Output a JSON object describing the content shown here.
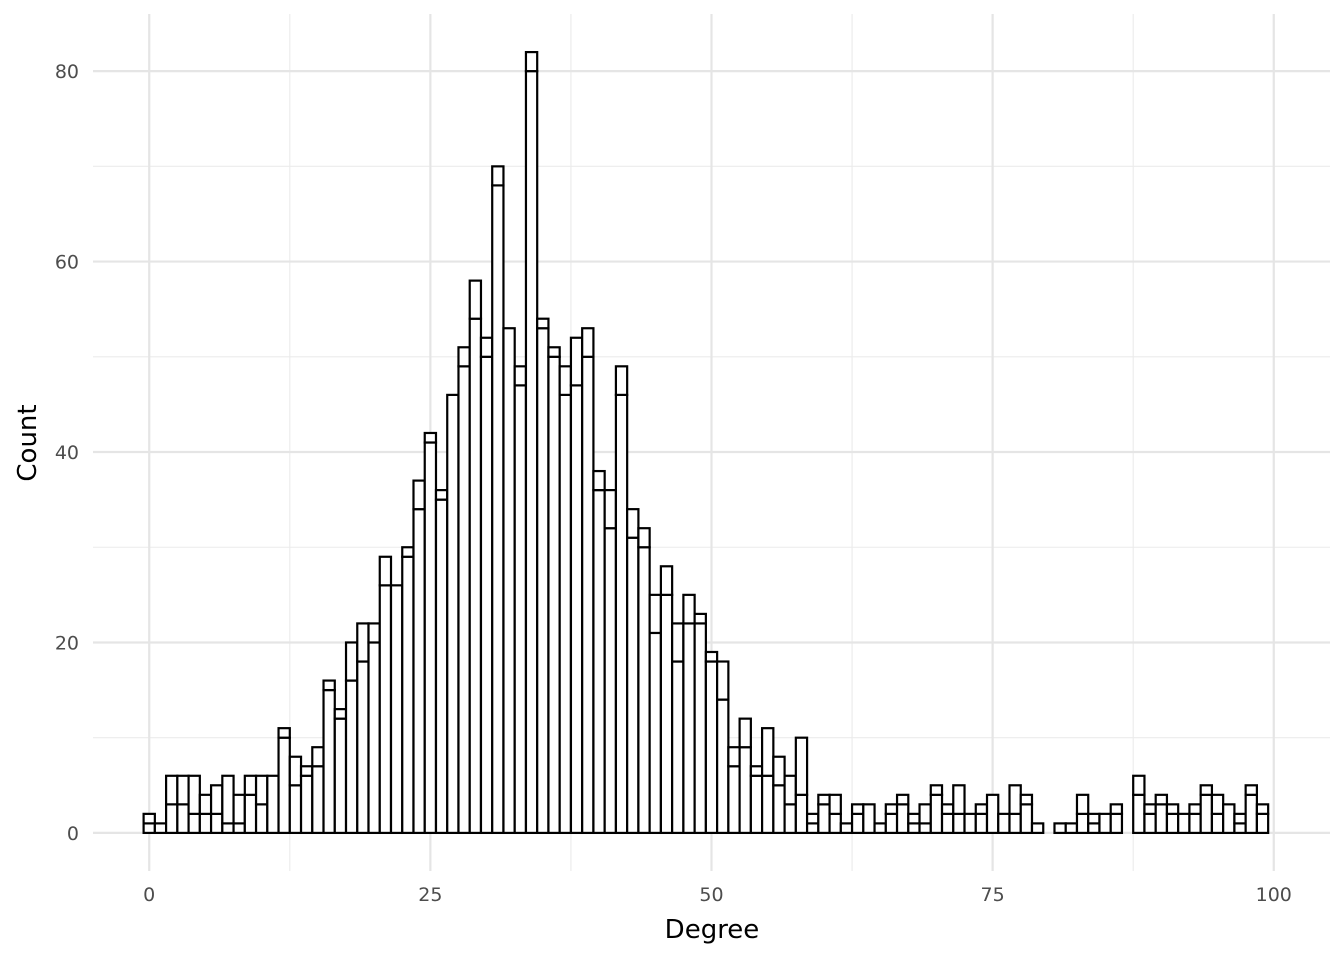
{
  "chart_data": {
    "type": "bar",
    "style": "stacked histogram, white bars with black outlines, minimal theme",
    "xlabel": "Degree",
    "ylabel": "Count",
    "x_ticks": [
      0,
      25,
      50,
      75,
      100
    ],
    "y_ticks": [
      0,
      20,
      40,
      60,
      80
    ],
    "xlim": [
      -5,
      105
    ],
    "ylim": [
      -4,
      86
    ],
    "grid": true,
    "legend": "none",
    "bin_width": 1,
    "x": [
      0,
      1,
      2,
      3,
      4,
      5,
      6,
      7,
      8,
      9,
      10,
      11,
      12,
      13,
      14,
      15,
      16,
      17,
      18,
      19,
      20,
      21,
      22,
      23,
      24,
      25,
      26,
      27,
      28,
      29,
      30,
      31,
      32,
      33,
      34,
      35,
      36,
      37,
      38,
      39,
      40,
      41,
      42,
      43,
      44,
      45,
      46,
      47,
      48,
      49,
      50,
      51,
      52,
      53,
      54,
      55,
      56,
      57,
      58,
      59,
      60,
      61,
      62,
      63,
      64,
      65,
      66,
      67,
      68,
      69,
      70,
      71,
      72,
      73,
      74,
      75,
      76,
      77,
      78,
      79,
      80,
      81,
      82,
      83,
      84,
      85,
      86,
      87,
      88,
      89,
      90,
      91,
      92,
      93,
      94,
      95,
      96,
      97,
      98,
      99
    ],
    "series": [
      {
        "values": [
          1,
          1,
          3,
          3,
          2,
          2,
          2,
          1,
          1,
          4,
          3,
          6,
          10,
          5,
          6,
          7,
          15,
          12,
          16,
          18,
          20,
          26,
          26,
          29,
          34,
          41,
          35,
          46,
          49,
          54,
          50,
          68,
          53,
          47,
          80,
          53,
          50,
          46,
          47,
          50,
          36,
          32,
          46,
          31,
          30,
          21,
          25,
          18,
          22,
          22,
          18,
          14,
          7,
          9,
          6,
          6,
          5,
          3,
          4,
          1,
          3,
          2,
          1,
          2,
          3,
          1,
          2,
          3,
          1,
          1,
          4,
          2,
          2,
          2,
          2,
          4,
          2,
          2,
          3,
          1,
          0,
          1,
          1,
          2,
          1,
          2,
          2,
          0,
          4,
          2,
          3,
          2,
          2,
          2,
          4,
          2,
          3,
          1,
          4,
          2
        ]
      },
      {
        "values": [
          1,
          0,
          3,
          3,
          4,
          2,
          3,
          5,
          3,
          2,
          3,
          0,
          1,
          3,
          1,
          2,
          1,
          1,
          4,
          4,
          2,
          3,
          0,
          1,
          3,
          1,
          1,
          0,
          2,
          4,
          2,
          2,
          0,
          2,
          2,
          1,
          1,
          3,
          5,
          3,
          2,
          4,
          3,
          3,
          2,
          4,
          3,
          4,
          3,
          1,
          1,
          4,
          2,
          3,
          1,
          5,
          3,
          3,
          6,
          1,
          1,
          2,
          0,
          1,
          0,
          0,
          1,
          1,
          1,
          2,
          1,
          1,
          3,
          0,
          1,
          0,
          0,
          3,
          1,
          0,
          0,
          0,
          0,
          2,
          1,
          0,
          1,
          0,
          2,
          1,
          1,
          1,
          0,
          1,
          1,
          2,
          0,
          1,
          1,
          1
        ]
      }
    ]
  }
}
